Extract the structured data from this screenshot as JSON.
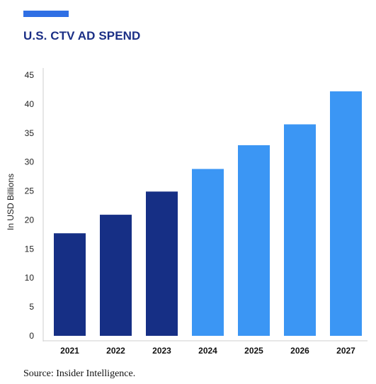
{
  "header": {
    "title": "U.S. CTV AD SPEND"
  },
  "footer": {
    "source": "Source: Insider Intelligence."
  },
  "colors": {
    "accent": "#2f6fe4",
    "actual": "#162f85",
    "forecast": "#3b96f4",
    "title": "#1b2f86"
  },
  "chart_data": {
    "type": "bar",
    "title": "U.S. CTV AD SPEND",
    "xlabel": "",
    "ylabel": "In USD Billions",
    "categories": [
      "2021",
      "2022",
      "2023",
      "2024",
      "2025",
      "2026",
      "2027"
    ],
    "values": [
      17.7,
      20.9,
      24.9,
      28.8,
      32.9,
      36.5,
      42.2
    ],
    "bar_colors": [
      "#162f85",
      "#162f85",
      "#162f85",
      "#3b96f4",
      "#3b96f4",
      "#3b96f4",
      "#3b96f4"
    ],
    "ylim": [
      0,
      45
    ],
    "yticks": [
      0,
      5,
      10,
      15,
      20,
      25,
      30,
      35,
      40,
      45
    ],
    "grid": false,
    "legend": "none"
  }
}
